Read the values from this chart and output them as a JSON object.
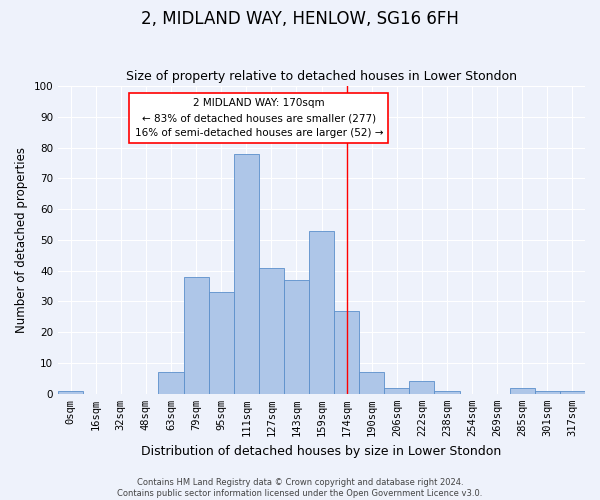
{
  "title": "2, MIDLAND WAY, HENLOW, SG16 6FH",
  "subtitle": "Size of property relative to detached houses in Lower Stondon",
  "xlabel": "Distribution of detached houses by size in Lower Stondon",
  "ylabel": "Number of detached properties",
  "bar_labels": [
    "0sqm",
    "16sqm",
    "32sqm",
    "48sqm",
    "63sqm",
    "79sqm",
    "95sqm",
    "111sqm",
    "127sqm",
    "143sqm",
    "159sqm",
    "174sqm",
    "190sqm",
    "206sqm",
    "222sqm",
    "238sqm",
    "254sqm",
    "269sqm",
    "285sqm",
    "301sqm",
    "317sqm"
  ],
  "bar_heights": [
    1,
    0,
    0,
    0,
    7,
    38,
    33,
    78,
    41,
    37,
    53,
    27,
    7,
    2,
    4,
    1,
    0,
    0,
    2,
    1,
    1
  ],
  "bar_color": "#aec6e8",
  "bar_edge_color": "#5b8fcb",
  "background_color": "#eef2fb",
  "grid_color": "#ffffff",
  "vline_index": 11,
  "vline_color": "red",
  "annotation_text": "2 MIDLAND WAY: 170sqm\n← 83% of detached houses are smaller (277)\n16% of semi-detached houses are larger (52) →",
  "annotation_box_color": "white",
  "annotation_box_edge": "red",
  "footer_line1": "Contains HM Land Registry data © Crown copyright and database right 2024.",
  "footer_line2": "Contains public sector information licensed under the Open Government Licence v3.0.",
  "ylim": [
    0,
    100
  ],
  "yticks": [
    0,
    10,
    20,
    30,
    40,
    50,
    60,
    70,
    80,
    90,
    100
  ],
  "title_fontsize": 12,
  "subtitle_fontsize": 9,
  "ylabel_fontsize": 8.5,
  "xlabel_fontsize": 9,
  "tick_fontsize": 7.5,
  "footer_fontsize": 6,
  "annotation_fontsize": 7.5
}
